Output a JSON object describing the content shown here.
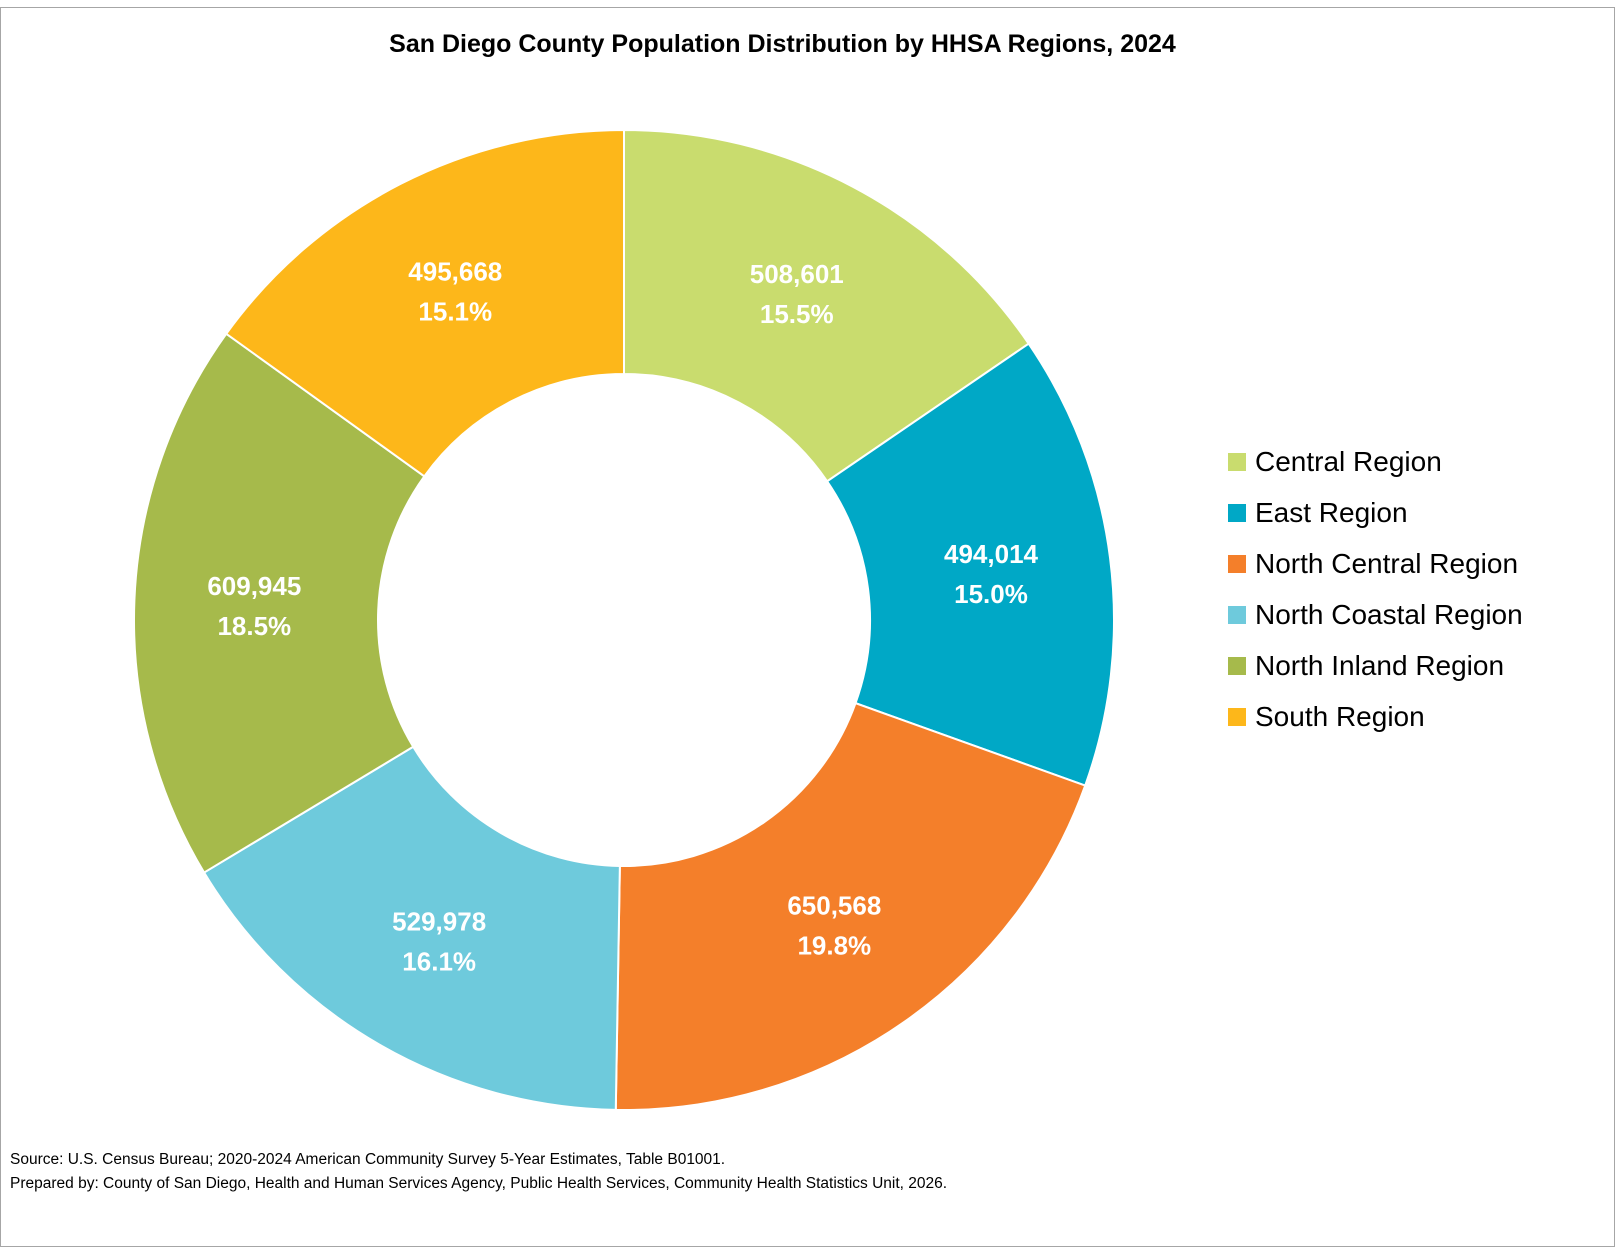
{
  "chart_data": {
    "type": "pie",
    "variant": "donut",
    "title": "San Diego County Population Distribution by HHSA Regions, 2024",
    "start_angle_deg": 0,
    "direction": "clockwise",
    "legend_position": "right",
    "slices": [
      {
        "name": "Central Region",
        "value": 508601,
        "value_label": "508,601",
        "percent_label": "15.5%",
        "color": "#C9DC6E"
      },
      {
        "name": "East Region",
        "value": 494014,
        "value_label": "494,014",
        "percent_label": "15.0%",
        "color": "#00A8C6"
      },
      {
        "name": "North Central Region",
        "value": 650568,
        "value_label": "650,568",
        "percent_label": "19.8%",
        "color": "#F47F2A"
      },
      {
        "name": "North Coastal Region",
        "value": 529978,
        "value_label": "529,978",
        "percent_label": "16.1%",
        "color": "#6ECADC"
      },
      {
        "name": "North Inland Region",
        "value": 609945,
        "value_label": "609,945",
        "percent_label": "18.5%",
        "color": "#A6BA4B"
      },
      {
        "name": "South Region",
        "value": 495668,
        "value_label": "495,668",
        "percent_label": "15.1%",
        "color": "#FDB71A"
      }
    ]
  },
  "footer": {
    "source": "Source: U.S. Census Bureau; 2020-2024 American Community Survey 5-Year Estimates, Table B01001.",
    "prepared_by": "Prepared by: County of San Diego, Health and Human Services Agency, Public Health Services, Community Health Statistics Unit, 2026."
  }
}
